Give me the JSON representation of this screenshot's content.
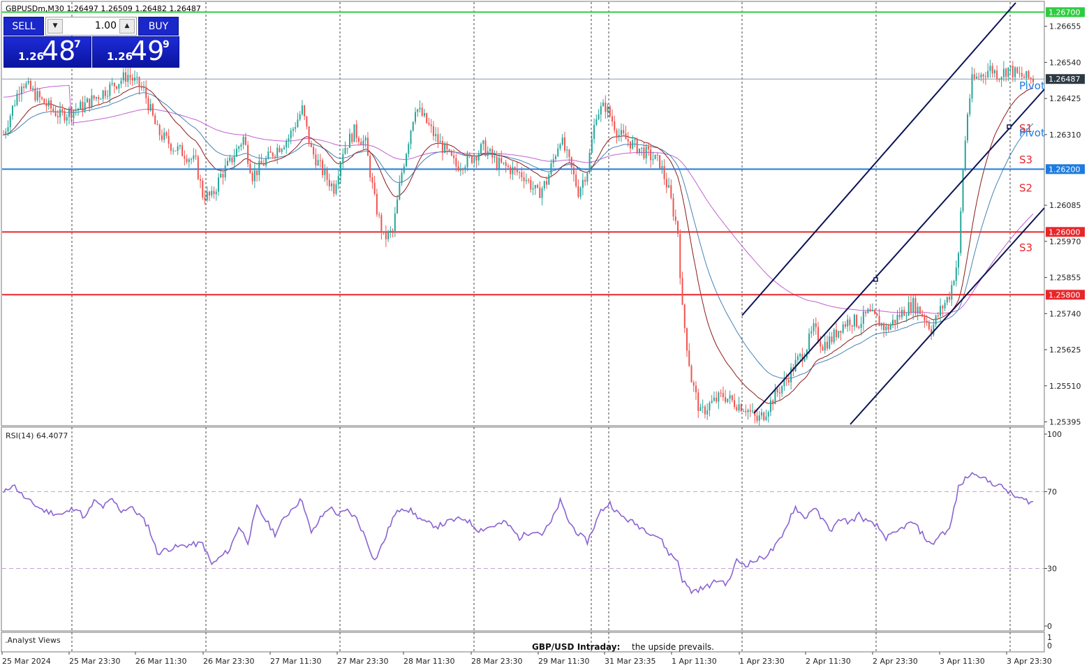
{
  "header": {
    "info_text": "GBPUSDm,M30  1.26497 1.26509 1.26482 1.26487"
  },
  "trade_panel": {
    "sell_label": "SELL",
    "buy_label": "BUY",
    "lot_value": "1.00",
    "sell_price": {
      "prefix": "1.26",
      "big": "48",
      "sup": "7"
    },
    "buy_price": {
      "prefix": "1.26",
      "big": "49",
      "sup": "9"
    },
    "down_glyph": "▼",
    "up_glyph": "▲"
  },
  "colors": {
    "bull": "#26a69a",
    "bear": "#ef5350",
    "green_level": "#2ecc40",
    "blue_level": "#1e7be0",
    "red_level": "#e8262a",
    "channel": "#0d1354",
    "rsi": "#8a63d2",
    "ma_purple": "#c060d0",
    "ma_blue": "#4682b4",
    "ma_darkred": "#8b1a1a"
  },
  "price_axis": {
    "ticks": [
      "1.26655",
      "1.26540",
      "1.26425",
      "1.26310",
      "1.26085",
      "1.25970",
      "1.25855",
      "1.25740",
      "1.25625",
      "1.25510",
      "1.25395"
    ],
    "tick_values": [
      1.26655,
      1.2654,
      1.26425,
      1.2631,
      1.26085,
      1.2597,
      1.25855,
      1.2574,
      1.25625,
      1.2551,
      1.25395
    ],
    "min": 1.25385,
    "max": 1.26732
  },
  "level_lines": [
    {
      "label": "1.26700",
      "value": 1.267,
      "kind": "green"
    },
    {
      "label": "1.26200",
      "value": 1.262,
      "kind": "blue"
    },
    {
      "label": "1.26000",
      "value": 1.26,
      "kind": "red"
    },
    {
      "label": "1.25800",
      "value": 1.258,
      "kind": "red"
    }
  ],
  "current_price": {
    "label": "1.26487",
    "value": 1.26487
  },
  "pivot_labels": [
    {
      "text": "Pivot",
      "color": "#1e7be0",
      "value": 1.26465
    },
    {
      "text": "Pivot",
      "color": "#1e7be0",
      "value": 1.26315
    },
    {
      "text": "S1",
      "color": "#e8262a",
      "value": 1.2633
    },
    {
      "text": "S3",
      "color": "#e8262a",
      "value": 1.2623
    },
    {
      "text": "S2",
      "color": "#e8262a",
      "value": 1.2614
    },
    {
      "text": "S3",
      "color": "#e8262a",
      "value": 1.2595
    }
  ],
  "rsi": {
    "label": "RSI(14) 64.4077",
    "ticks": [
      "100",
      "70",
      "30",
      "0"
    ],
    "tick_values": [
      100,
      70,
      30,
      0
    ],
    "levels": [
      70,
      30
    ]
  },
  "analyst": {
    "label": ".Analyst Views",
    "ticks": [
      "1",
      "0"
    ]
  },
  "footer": {
    "title": "GBP/USD Intraday:",
    "text": "the upside prevails."
  },
  "time_axis": [
    "25 Mar 2024",
    "25 Mar 23:30",
    "26 Mar 11:30",
    "26 Mar 23:30",
    "27 Mar 11:30",
    "27 Mar 23:30",
    "28 Mar 11:30",
    "28 Mar 23:30",
    "29 Mar 11:30",
    "31 Mar 23:35",
    "1 Apr 11:30",
    "1 Apr 23:30",
    "2 Apr 11:30",
    "2 Apr 23:30",
    "3 Apr 11:30",
    "3 Apr 23:30"
  ],
  "chart_data": {
    "type": "candlestick",
    "symbol": "GBPUSDm",
    "timeframe": "M30",
    "ohlc_last": {
      "open": 1.26497,
      "high": 1.26509,
      "low": 1.26482,
      "close": 1.26487
    },
    "ylim": [
      1.25385,
      1.26732
    ],
    "price_path": [
      [
        0,
        1.2631
      ],
      [
        8,
        1.2648
      ],
      [
        18,
        1.2641
      ],
      [
        25,
        1.2637
      ],
      [
        35,
        1.264
      ],
      [
        45,
        1.2645
      ],
      [
        55,
        1.265
      ],
      [
        62,
        1.2645
      ],
      [
        68,
        1.2632
      ],
      [
        75,
        1.2627
      ],
      [
        80,
        1.2625
      ],
      [
        85,
        1.2622
      ],
      [
        88,
        1.2612
      ],
      [
        92,
        1.2611
      ],
      [
        96,
        1.2618
      ],
      [
        100,
        1.2622
      ],
      [
        106,
        1.263
      ],
      [
        110,
        1.2618
      ],
      [
        115,
        1.2622
      ],
      [
        120,
        1.2626
      ],
      [
        126,
        1.263
      ],
      [
        132,
        1.2639
      ],
      [
        136,
        1.2626
      ],
      [
        142,
        1.2618
      ],
      [
        146,
        1.2614
      ],
      [
        150,
        1.2626
      ],
      [
        155,
        1.2632
      ],
      [
        160,
        1.2628
      ],
      [
        164,
        1.261
      ],
      [
        168,
        1.2598
      ],
      [
        172,
        1.26
      ],
      [
        176,
        1.2619
      ],
      [
        182,
        1.264
      ],
      [
        186,
        1.2636
      ],
      [
        191,
        1.263
      ],
      [
        195,
        1.2626
      ],
      [
        200,
        1.2621
      ],
      [
        206,
        1.2623
      ],
      [
        212,
        1.2627
      ],
      [
        218,
        1.2622
      ],
      [
        224,
        1.262
      ],
      [
        230,
        1.2618
      ],
      [
        236,
        1.2612
      ],
      [
        240,
        1.2616
      ],
      [
        246,
        1.263
      ],
      [
        250,
        1.2622
      ],
      [
        254,
        1.2613
      ],
      [
        258,
        1.262
      ],
      [
        262,
        1.2638
      ],
      [
        266,
        1.264
      ],
      [
        272,
        1.2631
      ],
      [
        278,
        1.2628
      ],
      [
        284,
        1.2625
      ],
      [
        290,
        1.2622
      ],
      [
        294,
        1.2613
      ],
      [
        298,
        1.26
      ],
      [
        300,
        1.2575
      ],
      [
        304,
        1.2553
      ],
      [
        308,
        1.2542
      ],
      [
        312,
        1.2545
      ],
      [
        318,
        1.2548
      ],
      [
        322,
        1.2546
      ],
      [
        328,
        1.2544
      ],
      [
        333,
        1.254
      ],
      [
        336,
        1.2542
      ],
      [
        341,
        1.2548
      ],
      [
        346,
        1.2553
      ],
      [
        350,
        1.2558
      ],
      [
        354,
        1.2562
      ],
      [
        358,
        1.2569
      ],
      [
        362,
        1.2564
      ],
      [
        366,
        1.2566
      ],
      [
        370,
        1.257
      ],
      [
        374,
        1.2572
      ],
      [
        378,
        1.2571
      ],
      [
        382,
        1.2574
      ],
      [
        386,
        1.2572
      ],
      [
        390,
        1.2569
      ],
      [
        394,
        1.2572
      ],
      [
        398,
        1.2575
      ],
      [
        402,
        1.2577
      ],
      [
        406,
        1.2574
      ],
      [
        410,
        1.2569
      ],
      [
        414,
        1.2575
      ],
      [
        418,
        1.258
      ],
      [
        422,
        1.2592
      ],
      [
        424,
        1.262
      ],
      [
        426,
        1.2638
      ],
      [
        428,
        1.2648
      ],
      [
        432,
        1.265
      ],
      [
        436,
        1.2652
      ],
      [
        440,
        1.265
      ],
      [
        444,
        1.2652
      ],
      [
        448,
        1.265
      ],
      [
        452,
        1.2649
      ],
      [
        455,
        1.26487
      ]
    ],
    "rsi_path": [
      [
        0,
        69
      ],
      [
        4,
        74
      ],
      [
        10,
        66
      ],
      [
        18,
        60
      ],
      [
        26,
        58
      ],
      [
        32,
        62
      ],
      [
        36,
        56
      ],
      [
        40,
        65
      ],
      [
        44,
        62
      ],
      [
        48,
        66
      ],
      [
        52,
        60
      ],
      [
        56,
        62
      ],
      [
        60,
        58
      ],
      [
        64,
        52
      ],
      [
        68,
        38
      ],
      [
        72,
        40
      ],
      [
        80,
        42
      ],
      [
        88,
        43
      ],
      [
        92,
        32
      ],
      [
        96,
        36
      ],
      [
        100,
        40
      ],
      [
        104,
        52
      ],
      [
        108,
        44
      ],
      [
        112,
        62
      ],
      [
        116,
        55
      ],
      [
        120,
        48
      ],
      [
        124,
        56
      ],
      [
        128,
        62
      ],
      [
        132,
        66
      ],
      [
        136,
        48
      ],
      [
        140,
        56
      ],
      [
        144,
        62
      ],
      [
        148,
        58
      ],
      [
        152,
        60
      ],
      [
        156,
        56
      ],
      [
        160,
        46
      ],
      [
        164,
        34
      ],
      [
        168,
        44
      ],
      [
        172,
        56
      ],
      [
        176,
        62
      ],
      [
        180,
        60
      ],
      [
        186,
        54
      ],
      [
        192,
        52
      ],
      [
        198,
        55
      ],
      [
        204,
        56
      ],
      [
        210,
        50
      ],
      [
        216,
        52
      ],
      [
        222,
        54
      ],
      [
        228,
        46
      ],
      [
        234,
        50
      ],
      [
        238,
        48
      ],
      [
        242,
        54
      ],
      [
        246,
        65
      ],
      [
        250,
        54
      ],
      [
        254,
        48
      ],
      [
        258,
        44
      ],
      [
        264,
        60
      ],
      [
        268,
        64
      ],
      [
        272,
        58
      ],
      [
        278,
        54
      ],
      [
        284,
        50
      ],
      [
        290,
        46
      ],
      [
        294,
        38
      ],
      [
        298,
        34
      ],
      [
        300,
        24
      ],
      [
        304,
        18
      ],
      [
        310,
        20
      ],
      [
        316,
        24
      ],
      [
        320,
        22
      ],
      [
        324,
        34
      ],
      [
        328,
        32
      ],
      [
        332,
        34
      ],
      [
        336,
        36
      ],
      [
        340,
        40
      ],
      [
        344,
        46
      ],
      [
        348,
        58
      ],
      [
        350,
        62
      ],
      [
        354,
        56
      ],
      [
        358,
        62
      ],
      [
        362,
        55
      ],
      [
        366,
        50
      ],
      [
        370,
        56
      ],
      [
        374,
        54
      ],
      [
        378,
        58
      ],
      [
        382,
        54
      ],
      [
        386,
        52
      ],
      [
        390,
        46
      ],
      [
        394,
        48
      ],
      [
        398,
        52
      ],
      [
        402,
        54
      ],
      [
        406,
        48
      ],
      [
        410,
        42
      ],
      [
        414,
        48
      ],
      [
        418,
        50
      ],
      [
        422,
        72
      ],
      [
        426,
        78
      ],
      [
        430,
        80
      ],
      [
        434,
        76
      ],
      [
        438,
        74
      ],
      [
        442,
        72
      ],
      [
        446,
        68
      ],
      [
        450,
        66
      ],
      [
        455,
        64.4077
      ]
    ]
  }
}
